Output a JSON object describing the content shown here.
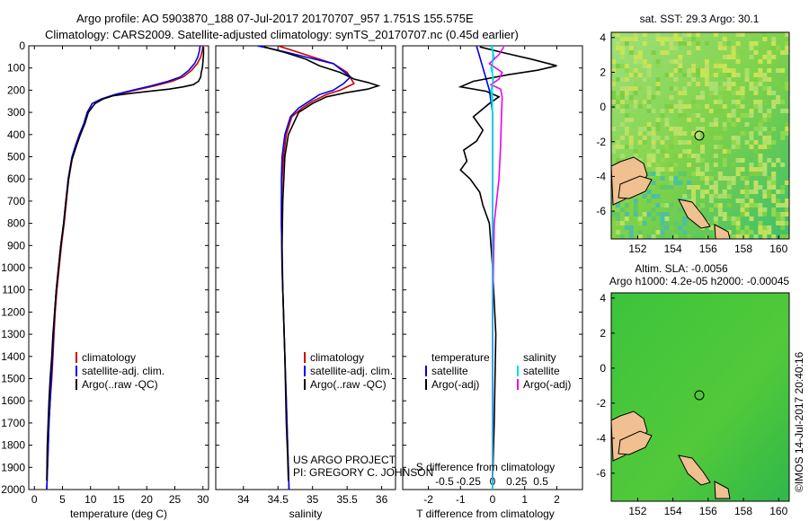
{
  "header": {
    "line1": "Argo profile: AO 5903870_188 07-Jul-2017 20170707_957 1.751S 155.575E",
    "line2": "Climatology: CARS2009. Satellite-adjusted climatology: synTS_20170707.nc (0.45d earlier)"
  },
  "credit": "©IMOS 14-Jul-2017 20:40:16",
  "project": {
    "line1": "US ARGO PROJECT",
    "line2": "PI: GREGORY C. JOHNSON"
  },
  "colors": {
    "climatology": "#cc0000",
    "satellite": "#0000ee",
    "argo": "#000000",
    "sal_satellite": "#00e0e0",
    "sal_argo": "#ee00ee",
    "map_water": "#7cd34a",
    "map_land": "#f0c090"
  },
  "legend_ts": [
    "climatology",
    "satellite-adj. clim.",
    "Argo(..raw -QC)"
  ],
  "legend_diff": {
    "temp_title": "temperature",
    "sal_title": "salinity",
    "temp_items": [
      "satellite",
      "Argo(-adj)"
    ],
    "sal_items": [
      "satellite",
      "Argo(-adj)"
    ]
  },
  "maps": [
    {
      "title": "sat. SST: 29.3  Argo: 30.1",
      "xticks": [
        "152",
        "154",
        "156",
        "158",
        "160"
      ],
      "yticks": [
        "4",
        "2",
        "0",
        "-2",
        "-4",
        "-6"
      ]
    },
    {
      "title1": "Altim. SLA: -0.0056",
      "title2": "Argo h1000: 4.2e-05 h2000: -0.00045",
      "xticks": [
        "152",
        "154",
        "156",
        "158",
        "160"
      ],
      "yticks": [
        "4",
        "2",
        "0",
        "-2",
        "-4",
        "-6"
      ]
    }
  ],
  "chart_data": [
    {
      "type": "line",
      "title": "",
      "xlabel": "temperature (deg C)",
      "ylabel": "",
      "xlim": [
        -1,
        31
      ],
      "ylim": [
        2000,
        0
      ],
      "xticks": [
        0,
        5,
        10,
        15,
        20,
        25,
        30
      ],
      "yticks": [
        0,
        100,
        200,
        300,
        400,
        500,
        600,
        700,
        800,
        900,
        1000,
        1100,
        1200,
        1300,
        1400,
        1500,
        1600,
        1700,
        1800,
        1900,
        2000
      ],
      "series": [
        {
          "name": "climatology",
          "color": "#cc0000",
          "x": [
            30.0,
            29.9,
            29.6,
            29.0,
            28.0,
            26.5,
            24.5,
            21.5,
            18.0,
            14.5,
            12.0,
            10.3,
            9.5,
            9.0,
            8.0,
            7.4,
            6.8,
            6.1,
            5.7,
            5.3,
            4.8,
            4.4,
            4.0,
            3.7,
            3.5,
            3.3,
            3.1,
            2.8,
            2.6,
            2.4,
            2.2
          ],
          "y": [
            0,
            20,
            50,
            80,
            110,
            140,
            160,
            180,
            200,
            220,
            240,
            260,
            300,
            350,
            400,
            450,
            500,
            600,
            700,
            800,
            900,
            1000,
            1100,
            1200,
            1300,
            1400,
            1500,
            1600,
            1700,
            1850,
            2000
          ]
        },
        {
          "name": "satellite-adj. clim.",
          "color": "#0000ee",
          "x": [
            29.5,
            29.4,
            29.1,
            28.5,
            27.5,
            26.0,
            23.8,
            20.8,
            17.5,
            14.3,
            11.9,
            10.3,
            9.4,
            8.8,
            8.0,
            7.3,
            6.7,
            6.0,
            5.6,
            5.2,
            4.7,
            4.3,
            3.9,
            3.6,
            3.4,
            3.2,
            3.0,
            2.8,
            2.6,
            2.4,
            2.2
          ],
          "y": [
            0,
            20,
            50,
            80,
            110,
            140,
            160,
            180,
            200,
            220,
            240,
            260,
            300,
            350,
            400,
            450,
            500,
            600,
            700,
            800,
            900,
            1000,
            1100,
            1200,
            1300,
            1400,
            1500,
            1600,
            1700,
            1850,
            2000
          ]
        },
        {
          "name": "Argo(..raw -QC)",
          "color": "#000000",
          "x": [
            30.1,
            30.1,
            30.0,
            29.9,
            29.7,
            29.6,
            29.2,
            28.3,
            26.5,
            24.0,
            20.5,
            17.0,
            14.0,
            12.2,
            10.8,
            9.6,
            9.0,
            8.2,
            7.5,
            6.6,
            6.1,
            5.6,
            5.2,
            4.7,
            4.3,
            3.9,
            3.6,
            3.3,
            3.1,
            2.8,
            2.6,
            2.3,
            2.2
          ],
          "y": [
            5,
            40,
            70,
            100,
            120,
            140,
            160,
            175,
            185,
            195,
            205,
            215,
            225,
            240,
            260,
            300,
            350,
            400,
            450,
            520,
            600,
            700,
            800,
            900,
            1000,
            1100,
            1200,
            1300,
            1400,
            1500,
            1600,
            1800,
            1960
          ]
        }
      ]
    },
    {
      "type": "line",
      "title": "",
      "xlabel": "salinity",
      "ylabel": "",
      "xlim": [
        33.6,
        36.2
      ],
      "ylim": [
        2000,
        0
      ],
      "xticks": [
        34,
        34.5,
        35,
        35.5,
        36
      ],
      "series": [
        {
          "name": "climatology",
          "color": "#cc0000",
          "x": [
            34.5,
            34.7,
            35.0,
            35.3,
            35.5,
            35.6,
            35.4,
            35.2,
            35.0,
            34.85,
            34.7,
            34.62,
            34.58,
            34.56,
            34.55,
            34.55,
            34.56,
            34.58,
            34.6,
            34.62,
            34.64,
            34.65,
            34.66
          ],
          "y": [
            0,
            20,
            50,
            80,
            120,
            170,
            200,
            220,
            250,
            280,
            320,
            400,
            500,
            600,
            700,
            800,
            1000,
            1200,
            1400,
            1600,
            1800,
            1900,
            2000
          ]
        },
        {
          "name": "satellite-adj. clim.",
          "color": "#0000ee",
          "x": [
            34.2,
            34.5,
            34.9,
            35.3,
            35.55,
            35.45,
            35.3,
            35.1,
            34.95,
            34.8,
            34.68,
            34.6,
            34.56,
            34.55,
            34.55,
            34.55,
            34.56,
            34.58,
            34.6,
            34.62,
            34.64,
            34.65,
            34.66
          ],
          "y": [
            0,
            20,
            50,
            80,
            140,
            170,
            200,
            220,
            250,
            280,
            320,
            400,
            500,
            600,
            700,
            800,
            1000,
            1200,
            1400,
            1600,
            1800,
            1900,
            2000
          ]
        },
        {
          "name": "Argo(..raw -QC)",
          "color": "#000000",
          "x": [
            34.3,
            34.6,
            34.9,
            35.1,
            35.4,
            35.6,
            35.8,
            35.95,
            35.8,
            35.5,
            35.2,
            35.0,
            34.8,
            34.65,
            34.6,
            34.57,
            34.56,
            34.57,
            34.6,
            34.62,
            34.64,
            34.65
          ],
          "y": [
            5,
            30,
            60,
            90,
            120,
            150,
            165,
            180,
            195,
            210,
            230,
            260,
            300,
            400,
            500,
            700,
            900,
            1100,
            1400,
            1700,
            1850,
            1960
          ]
        }
      ]
    },
    {
      "type": "line",
      "title": "",
      "xlabel": "T difference from climatology",
      "xlabel_top": "S difference from climatology",
      "ylabel": "",
      "xlim": [
        -2.8,
        2.8
      ],
      "ylim": [
        2000,
        0
      ],
      "xticks": [
        -2,
        -1,
        0,
        1,
        2
      ],
      "sal_xticks": [
        "-0.5",
        "-0.25",
        "0",
        "0.25",
        "0.5"
      ],
      "series": [
        {
          "name": "T satellite",
          "color": "#0000ee",
          "x": [
            -0.5,
            -0.4,
            -0.3,
            -0.2,
            -0.1,
            0,
            0,
            0,
            0
          ],
          "y": [
            0,
            50,
            100,
            150,
            200,
            300,
            800,
            1500,
            2000
          ]
        },
        {
          "name": "T Argo(-adj)",
          "color": "#000000",
          "x": [
            -0.4,
            0.3,
            1.2,
            2.0,
            1.4,
            0.5,
            -0.6,
            -1.0,
            -0.2,
            0.2,
            -0.1,
            -0.6,
            -0.3,
            -0.5,
            -0.9,
            -0.8,
            -1.0,
            -0.7,
            -0.4,
            -0.3,
            -0.1,
            0,
            0.1,
            0.05,
            0
          ],
          "y": [
            5,
            30,
            60,
            90,
            110,
            130,
            160,
            185,
            205,
            230,
            260,
            320,
            380,
            430,
            470,
            520,
            560,
            600,
            660,
            720,
            800,
            1000,
            1300,
            1700,
            1960
          ]
        },
        {
          "name": "S satellite",
          "color": "#00e0e0",
          "x": [
            -0.05,
            0.05,
            -0.05,
            0.03,
            -0.05,
            0,
            0,
            0
          ],
          "y": [
            0,
            50,
            100,
            150,
            200,
            300,
            1000,
            2000
          ]
        },
        {
          "name": "S Argo(-adj)",
          "color": "#ee00ee",
          "x": [
            0.35,
            0.2,
            -0.1,
            0.3,
            0.2,
            -0.05,
            0.25,
            0.3,
            0.28,
            0.25,
            0.2,
            0.05,
            0,
            0
          ],
          "y": [
            5,
            40,
            80,
            120,
            150,
            175,
            195,
            230,
            300,
            450,
            600,
            800,
            1200,
            1960
          ]
        }
      ]
    }
  ]
}
